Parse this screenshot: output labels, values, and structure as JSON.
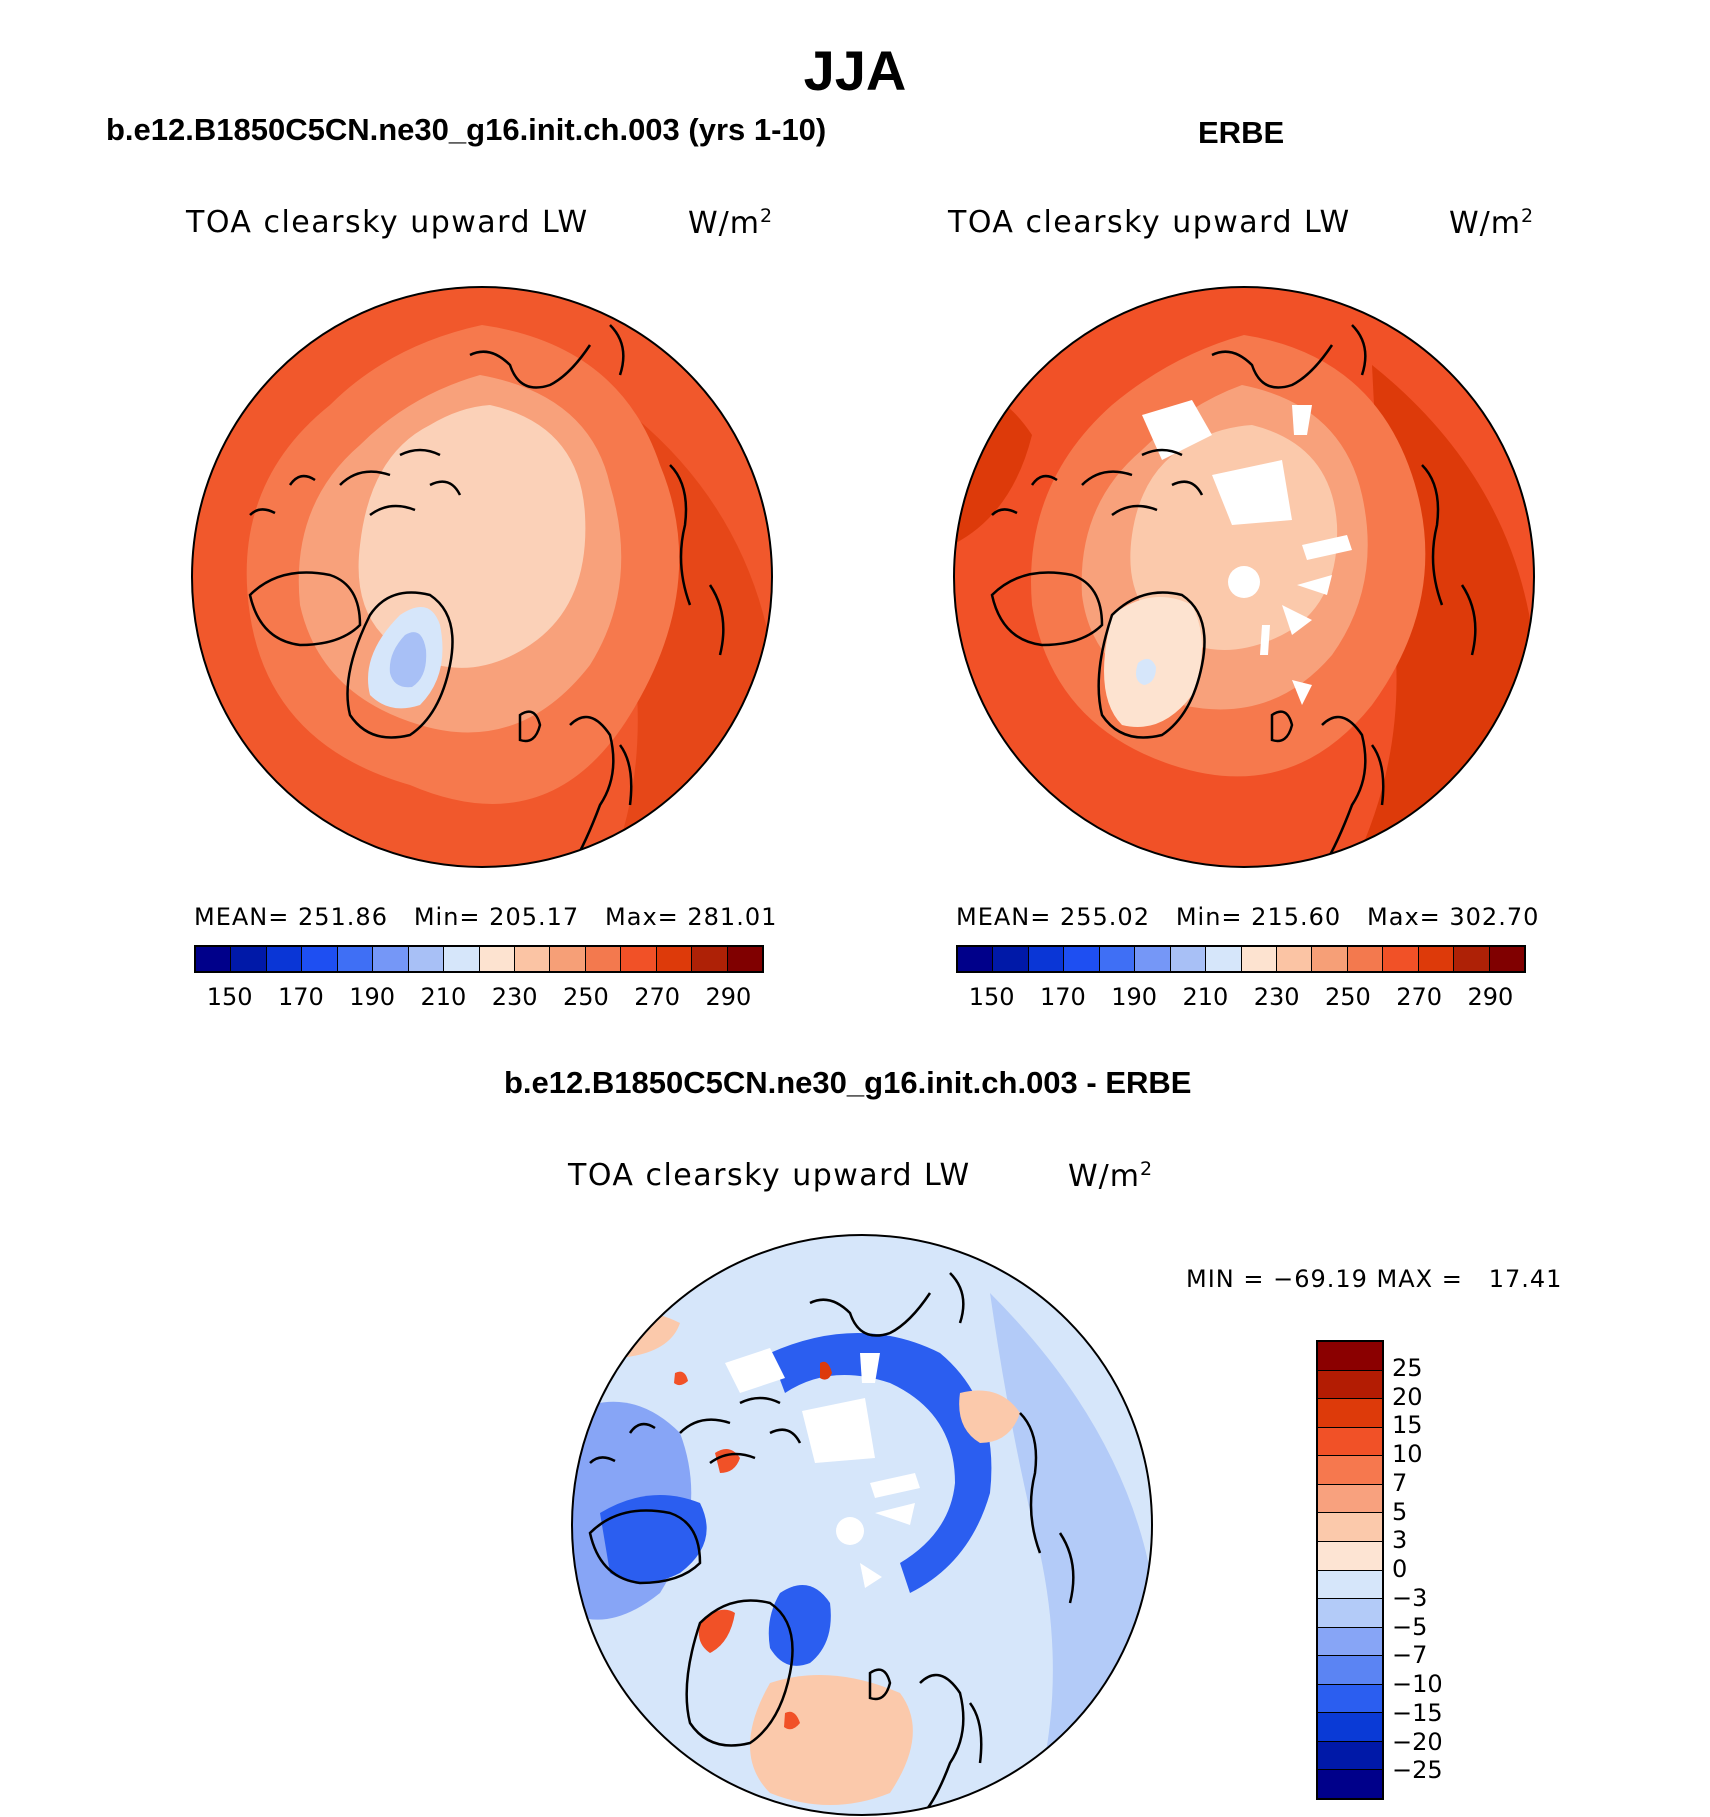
{
  "title": "JJA",
  "panels": {
    "left": {
      "title": "b.e12.B1850C5CN.ne30_g16.init.ch.003 (yrs 1-10)",
      "variable": "TOA clearsky upward LW",
      "units": "W/m",
      "units_exp": "2",
      "stats": "MEAN= 251.86   Min= 205.17   Max= 281.01"
    },
    "right": {
      "title": "ERBE",
      "variable": "TOA clearsky upward LW",
      "units": "W/m",
      "units_exp": "2",
      "stats": "MEAN= 255.02   Min= 215.60   Max= 302.70"
    },
    "diff": {
      "title": "b.e12.B1850C5CN.ne30_g16.init.ch.003 - ERBE",
      "variable": "TOA clearsky upward LW",
      "units": "W/m",
      "units_exp": "2",
      "stats": "MIN = −69.19 MAX =   17.41"
    }
  },
  "colorbar_abs": {
    "levels": [
      "150",
      "170",
      "190",
      "210",
      "230",
      "250",
      "270",
      "290"
    ],
    "colors": [
      "#00008a",
      "#0019a8",
      "#0a36d6",
      "#1e4ff2",
      "#3f6ff5",
      "#7597f7",
      "#a8c0f6",
      "#d6e6fa",
      "#fde3d0",
      "#fbc4a4",
      "#f69f77",
      "#f3794e",
      "#f15127",
      "#dd3a0a",
      "#ae2106",
      "#800000"
    ]
  },
  "colorbar_diff": {
    "levels": [
      "25",
      "20",
      "15",
      "10",
      "7",
      "5",
      "3",
      "0",
      "−3",
      "−5",
      "−7",
      "−10",
      "−15",
      "−20",
      "−25"
    ],
    "colors": [
      "#8b0000",
      "#b31c03",
      "#dd3a0a",
      "#f15127",
      "#f6784e",
      "#f8a17e",
      "#fbc9ab",
      "#fde4d3",
      "#d6e6fa",
      "#b3cbf8",
      "#87a5f6",
      "#5b84f3",
      "#2b5ef0",
      "#0a3ad6",
      "#0019a8",
      "#00008a"
    ]
  },
  "maps": {
    "left": {
      "base": "#f1582c",
      "ring2": "#f6794d",
      "ring3": "#f8a17b",
      "inner": "#fbd1b8",
      "cold1": "#d6e6fa",
      "cold2": "#a8c0f6",
      "warm": "#dd3a0a"
    },
    "right": {
      "base": "#f15127",
      "ring2": "#f6794d",
      "ring3": "#f8a17b",
      "inner": "#fbc9ab",
      "cold1": "#d6e6fa",
      "warm": "#dd3a0a"
    },
    "diff": {
      "base": "#d6e6fa",
      "mid": "#b3cbf8",
      "blue": "#5b84f3",
      "deep": "#1e4ff2",
      "warm": "#fbc9ab",
      "hot": "#f15127"
    }
  }
}
